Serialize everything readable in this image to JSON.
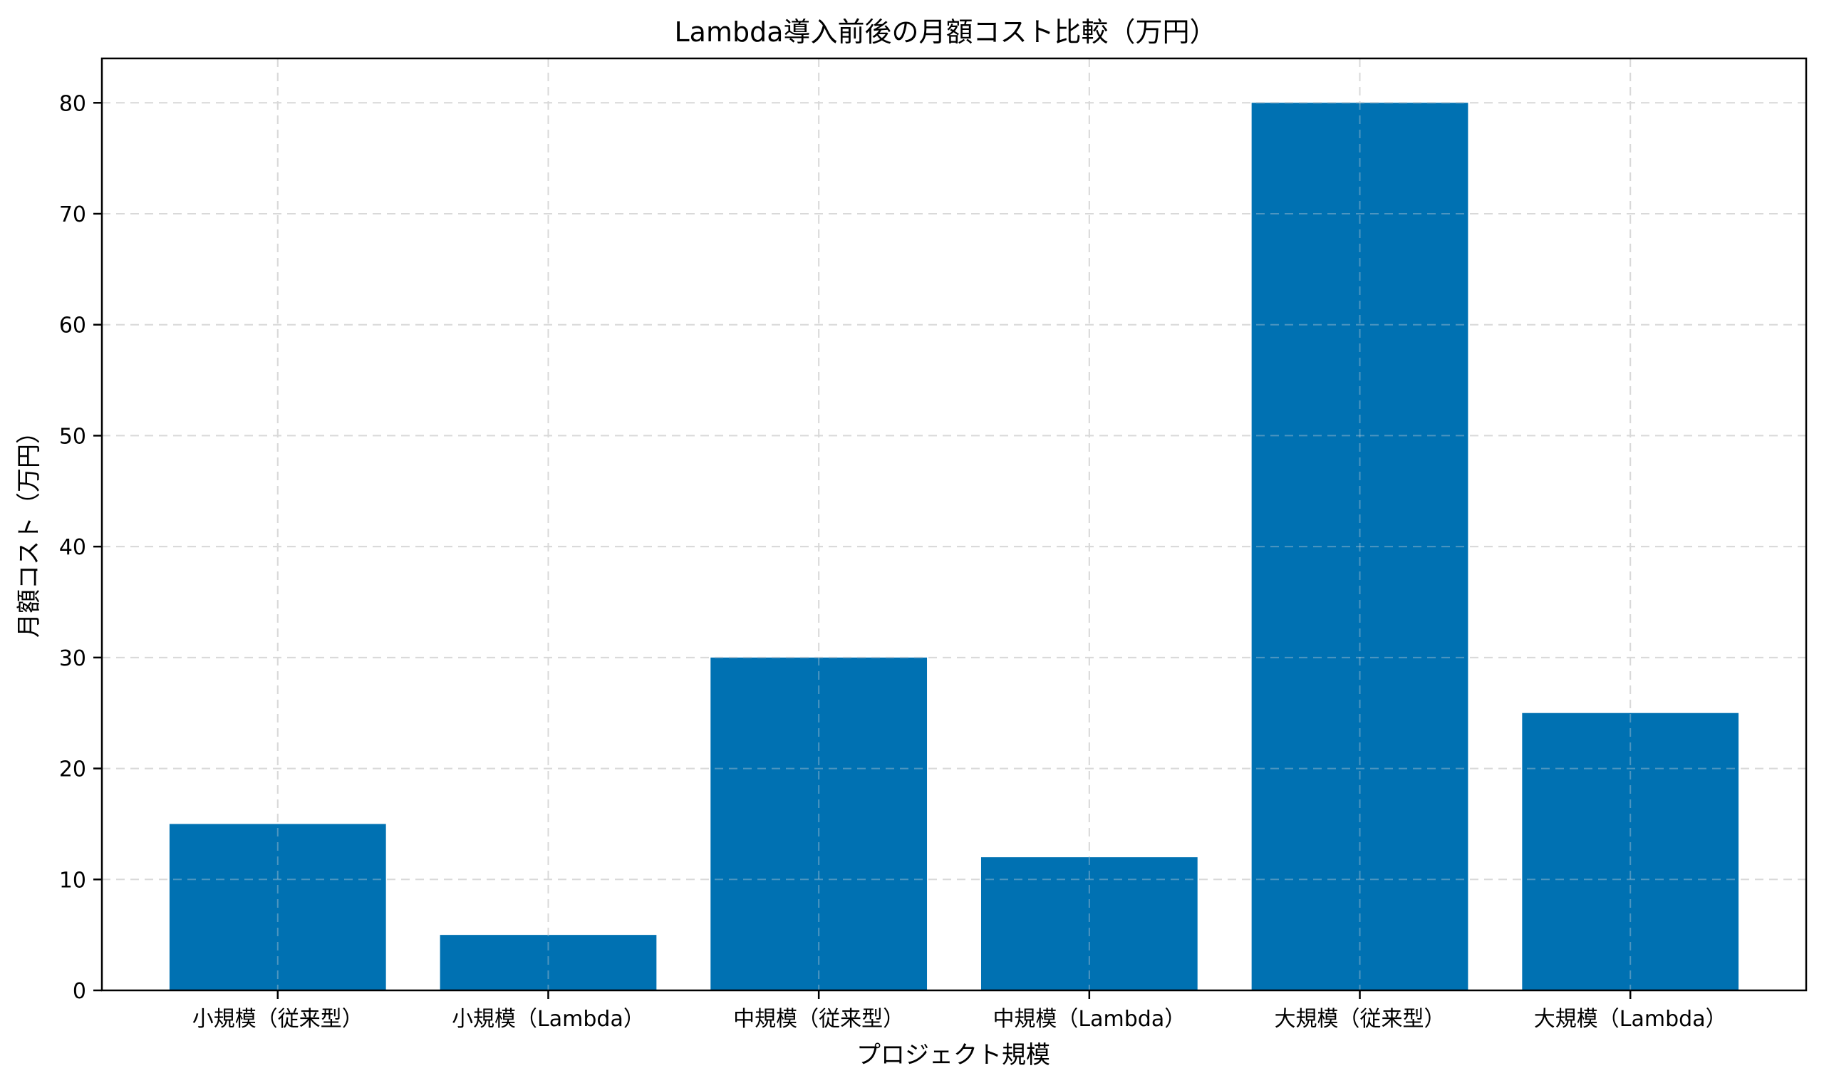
{
  "chart_data": {
    "type": "bar",
    "title": "Lambda導入前後の月額コスト比較（万円）",
    "xlabel": "プロジェクト規模",
    "ylabel": "月額コスト（万円）",
    "categories": [
      "小規模（従来型）",
      "小規模（Lambda）",
      "中規模（従来型）",
      "中規模（Lambda）",
      "大規模（従来型）",
      "大規模（Lambda）"
    ],
    "values": [
      15,
      5,
      30,
      12,
      80,
      25
    ],
    "ylim": [
      0,
      84
    ],
    "yticks": [
      0,
      10,
      20,
      30,
      40,
      50,
      60,
      70,
      80
    ],
    "grid": true,
    "bar_color": "#0071b2"
  }
}
